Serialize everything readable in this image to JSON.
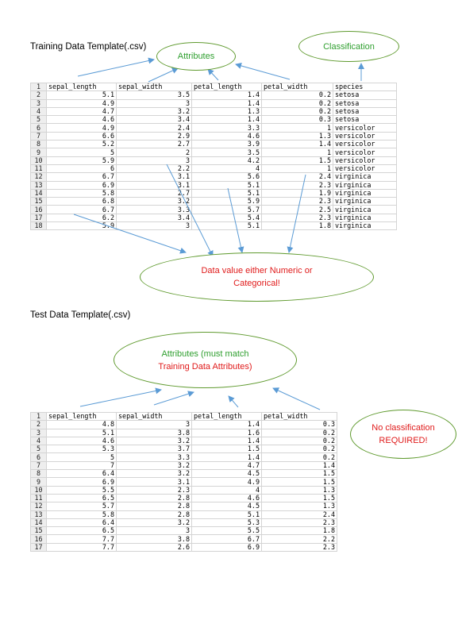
{
  "training": {
    "title": "Training Data Template(.csv)",
    "headers": [
      "sepal_length",
      "sepal_width",
      "petal_length",
      "petal_width",
      "species"
    ],
    "rows": [
      [
        "5.1",
        "3.5",
        "1.4",
        "0.2",
        "setosa"
      ],
      [
        "4.9",
        "3",
        "1.4",
        "0.2",
        "setosa"
      ],
      [
        "4.7",
        "3.2",
        "1.3",
        "0.2",
        "setosa"
      ],
      [
        "4.6",
        "3.4",
        "1.4",
        "0.3",
        "setosa"
      ],
      [
        "4.9",
        "2.4",
        "3.3",
        "1",
        "versicolor"
      ],
      [
        "6.6",
        "2.9",
        "4.6",
        "1.3",
        "versicolor"
      ],
      [
        "5.2",
        "2.7",
        "3.9",
        "1.4",
        "versicolor"
      ],
      [
        "5",
        "2",
        "3.5",
        "1",
        "versicolor"
      ],
      [
        "5.9",
        "3",
        "4.2",
        "1.5",
        "versicolor"
      ],
      [
        "6",
        "2.2",
        "4",
        "1",
        "versicolor"
      ],
      [
        "6.7",
        "3.1",
        "5.6",
        "2.4",
        "virginica"
      ],
      [
        "6.9",
        "3.1",
        "5.1",
        "2.3",
        "virginica"
      ],
      [
        "5.8",
        "2.7",
        "5.1",
        "1.9",
        "virginica"
      ],
      [
        "6.8",
        "3.2",
        "5.9",
        "2.3",
        "virginica"
      ],
      [
        "6.7",
        "3.3",
        "5.7",
        "2.5",
        "virginica"
      ],
      [
        "6.2",
        "3.4",
        "5.4",
        "2.3",
        "virginica"
      ],
      [
        "5.9",
        "3",
        "5.1",
        "1.8",
        "virginica"
      ]
    ],
    "attributes_label": "Attributes",
    "classification_label": "Classification",
    "data_value_line1": "Data value either Numeric or",
    "data_value_line2": "Categorical!"
  },
  "test": {
    "title": "Test Data Template(.csv)",
    "headers": [
      "sepal_length",
      "sepal_width",
      "petal_length",
      "petal_width"
    ],
    "rows": [
      [
        "4.8",
        "3",
        "1.4",
        "0.3"
      ],
      [
        "5.1",
        "3.8",
        "1.6",
        "0.2"
      ],
      [
        "4.6",
        "3.2",
        "1.4",
        "0.2"
      ],
      [
        "5.3",
        "3.7",
        "1.5",
        "0.2"
      ],
      [
        "5",
        "3.3",
        "1.4",
        "0.2"
      ],
      [
        "7",
        "3.2",
        "4.7",
        "1.4"
      ],
      [
        "6.4",
        "3.2",
        "4.5",
        "1.5"
      ],
      [
        "6.9",
        "3.1",
        "4.9",
        "1.5"
      ],
      [
        "5.5",
        "2.3",
        "4",
        "1.3"
      ],
      [
        "6.5",
        "2.8",
        "4.6",
        "1.5"
      ],
      [
        "5.7",
        "2.8",
        "4.5",
        "1.3"
      ],
      [
        "5.8",
        "2.8",
        "5.1",
        "2.4"
      ],
      [
        "6.4",
        "3.2",
        "5.3",
        "2.3"
      ],
      [
        "6.5",
        "3",
        "5.5",
        "1.8"
      ],
      [
        "7.7",
        "3.8",
        "6.7",
        "2.2"
      ],
      [
        "7.7",
        "2.6",
        "6.9",
        "2.3"
      ]
    ],
    "attributes_line1": "Attributes (must match",
    "attributes_line2": "Training Data Attributes)",
    "no_class_line1": "No classification",
    "no_class_line2": "REQUIRED!"
  },
  "colors": {
    "ellipse_border": "#5f9a2e",
    "arrow": "#5b9bd5",
    "green_text": "#2f9f2f",
    "red_text": "#e01b1b"
  }
}
